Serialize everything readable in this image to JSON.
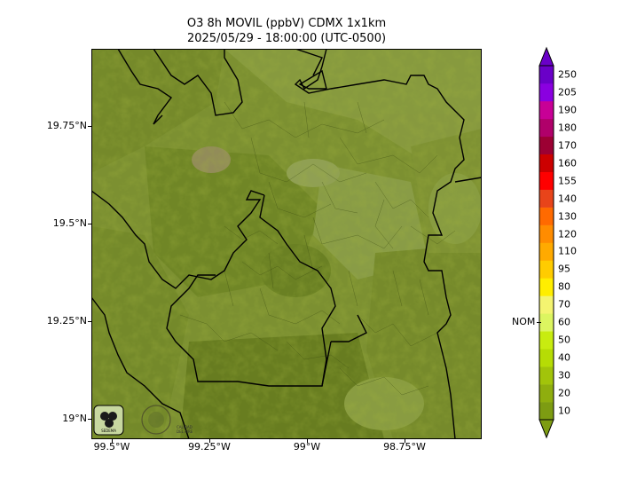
{
  "title": {
    "line1": "O3 8h MOVIL (ppbV) CDMX 1x1km",
    "line2": "2025/05/29 - 18:00:00 (UTC-0500)"
  },
  "axes": {
    "y_ticks": [
      "19.75°N",
      "19.5°N",
      "19.25°N",
      "19°N"
    ],
    "x_ticks": [
      "99.5°W",
      "99.25°W",
      "99°W",
      "98.75°W"
    ]
  },
  "colorbar": {
    "levels": [
      "10",
      "20",
      "30",
      "40",
      "50",
      "60",
      "70",
      "80",
      "95",
      "110",
      "120",
      "130",
      "140",
      "155",
      "160",
      "170",
      "180",
      "190",
      "205",
      "250"
    ],
    "colors": [
      "#7d9c12",
      "#8fae0e",
      "#a2c40a",
      "#b6dc05",
      "#c8ec10",
      "#dcf560",
      "#f4f470",
      "#ffee00",
      "#ffcc00",
      "#ffaa00",
      "#ff8c00",
      "#ff6a00",
      "#e8441a",
      "#ff0000",
      "#cc0000",
      "#9c0033",
      "#b0006a",
      "#c80096",
      "#8a00e0",
      "#6a00c8"
    ],
    "nom_label": "NOM",
    "nom_value": 60
  },
  "logos": {
    "logo1": "SEDEMA",
    "logo2": "CALIDAD DEL AIRE"
  },
  "map_colors": {
    "base": "#a9c33a",
    "light": "#c9e36a",
    "dark": "#7f9c22"
  }
}
